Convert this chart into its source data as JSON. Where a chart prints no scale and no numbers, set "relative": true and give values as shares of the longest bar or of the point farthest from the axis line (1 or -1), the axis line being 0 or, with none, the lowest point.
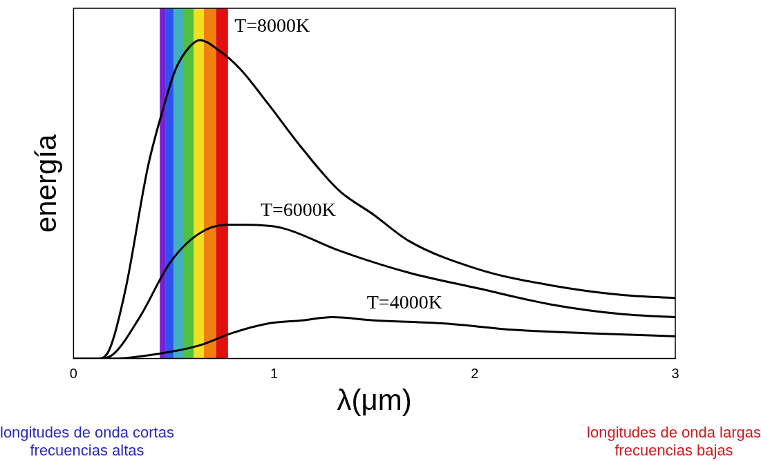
{
  "chart_data": {
    "type": "line",
    "relative": true,
    "xlabel": "λ(μm)",
    "ylabel": "energía",
    "xlim": [
      0,
      3
    ],
    "xticks": [
      0,
      1,
      2,
      3
    ],
    "grid": false,
    "legend": false,
    "marker": "none",
    "line_style": "solid",
    "bands": [
      {
        "axis": "x",
        "from": 0.43,
        "to": 0.46,
        "color": "#7b1fd0"
      },
      {
        "axis": "x",
        "from": 0.46,
        "to": 0.5,
        "color": "#3050f0"
      },
      {
        "axis": "x",
        "from": 0.5,
        "to": 0.55,
        "color": "#40b0c0"
      },
      {
        "axis": "x",
        "from": 0.55,
        "to": 0.6,
        "color": "#50c040"
      },
      {
        "axis": "x",
        "from": 0.6,
        "to": 0.65,
        "color": "#f0e020"
      },
      {
        "axis": "x",
        "from": 0.65,
        "to": 0.71,
        "color": "#f08010"
      },
      {
        "axis": "x",
        "from": 0.71,
        "to": 0.77,
        "color": "#e01010"
      }
    ],
    "series": [
      {
        "name": "T=8000K",
        "color": "#000000",
        "x": [
          0,
          0.12,
          0.18,
          0.26,
          0.37,
          0.44,
          0.51,
          0.58,
          0.63,
          0.72,
          0.83,
          0.97,
          1.14,
          1.32,
          1.5,
          1.67,
          2.02,
          2.38,
          2.73,
          3
        ],
        "values": [
          0,
          0,
          0.03,
          0.22,
          0.6,
          0.77,
          0.91,
          0.98,
          1,
          0.97,
          0.91,
          0.8,
          0.66,
          0.53,
          0.45,
          0.37,
          0.28,
          0.23,
          0.2,
          0.19
        ]
      },
      {
        "name": "T=6000K",
        "color": "#000000",
        "x": [
          0,
          0.12,
          0.19,
          0.33,
          0.48,
          0.62,
          0.76,
          0.86,
          1.04,
          1.32,
          1.67,
          2.02,
          2.38,
          2.73,
          3
        ],
        "values": [
          0,
          0,
          0.01,
          0.13,
          0.3,
          0.39,
          0.42,
          0.42,
          0.41,
          0.34,
          0.27,
          0.22,
          0.17,
          0.14,
          0.13
        ]
      },
      {
        "name": "T=4000K",
        "color": "#000000",
        "x": [
          0,
          0.2,
          0.37,
          0.62,
          0.79,
          0.97,
          1.14,
          1.29,
          1.5,
          1.85,
          2.2,
          2.55,
          3
        ],
        "values": [
          0,
          0,
          0.01,
          0.04,
          0.08,
          0.11,
          0.12,
          0.13,
          0.12,
          0.11,
          0.09,
          0.08,
          0.07
        ]
      }
    ],
    "annotations": [
      "longitudes de onda cortas\nfrecuencias altas",
      "longitudes de onda largas\nfrecuencias bajas"
    ]
  }
}
